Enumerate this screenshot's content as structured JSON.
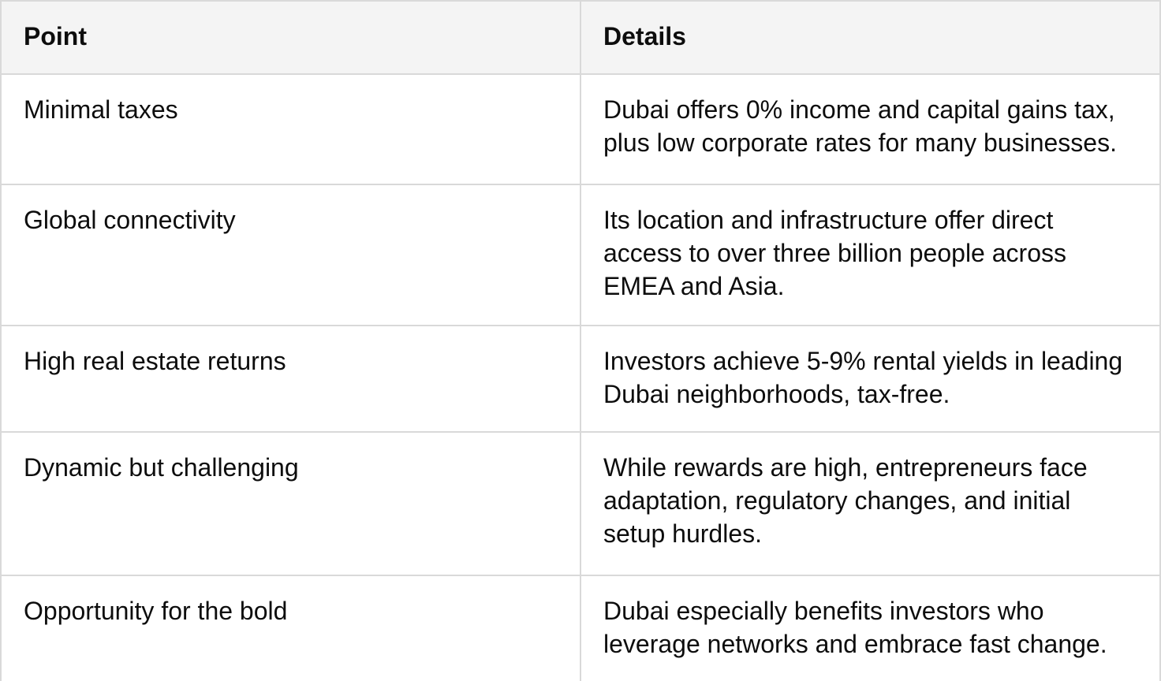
{
  "table": {
    "columns": [
      {
        "label": "Point"
      },
      {
        "label": "Details"
      }
    ],
    "rows": [
      {
        "point": "Minimal taxes",
        "details": "Dubai offers 0% income and capital gains tax, plus low corporate rates for many businesses."
      },
      {
        "point": "Global connectivity",
        "details": "Its location and infrastructure offer direct access to over three billion people across EMEA and Asia."
      },
      {
        "point": "High real estate returns",
        "details": "Investors achieve 5-9% rental yields in leading Dubai neighborhoods, tax-free."
      },
      {
        "point": "Dynamic but challenging",
        "details": "While rewards are high, entrepreneurs face adaptation, regulatory changes, and initial setup hurdles."
      },
      {
        "point": "Opportunity for the bold",
        "details": "Dubai especially benefits investors who leverage networks and embrace fast change."
      }
    ],
    "colors": {
      "header_bg": "#f4f4f4",
      "border": "#d9d9d9",
      "text": "#0d0d0d"
    }
  }
}
